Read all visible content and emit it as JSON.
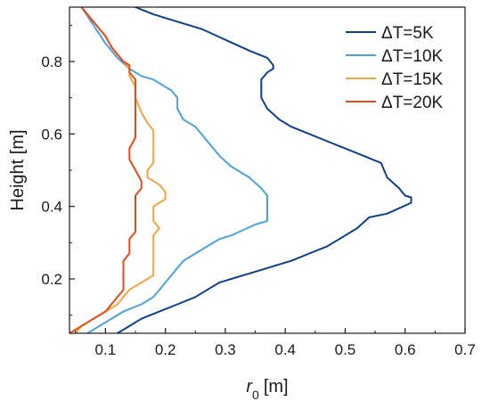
{
  "chart_data": {
    "type": "line",
    "title": "",
    "xlabel": "r",
    "xlabel_sub": "0",
    "xlabel_unit": "[m]",
    "ylabel": "Height [m]",
    "xlim": [
      0.04,
      0.7
    ],
    "ylim": [
      0.05,
      0.95
    ],
    "xticks": [
      0.1,
      0.2,
      0.3,
      0.4,
      0.5,
      0.6,
      0.7
    ],
    "xtick_labels": [
      "0.1",
      "0.2",
      "0.3",
      "0.4",
      "0.5",
      "0.6",
      "0.7"
    ],
    "yticks": [
      0.2,
      0.4,
      0.6,
      0.8
    ],
    "ytick_labels": [
      "0.2",
      "0.4",
      "0.6",
      "0.8"
    ],
    "grid": false,
    "legend_position": "top-right",
    "series": [
      {
        "name": "ΔT=5K",
        "color": "#0d3f8f",
        "points": [
          [
            0.12,
            0.05
          ],
          [
            0.14,
            0.07
          ],
          [
            0.16,
            0.09
          ],
          [
            0.19,
            0.11
          ],
          [
            0.22,
            0.13
          ],
          [
            0.25,
            0.15
          ],
          [
            0.27,
            0.17
          ],
          [
            0.29,
            0.19
          ],
          [
            0.31,
            0.2
          ],
          [
            0.33,
            0.21
          ],
          [
            0.35,
            0.22
          ],
          [
            0.37,
            0.23
          ],
          [
            0.39,
            0.24
          ],
          [
            0.41,
            0.25
          ],
          [
            0.44,
            0.27
          ],
          [
            0.47,
            0.29
          ],
          [
            0.49,
            0.31
          ],
          [
            0.51,
            0.33
          ],
          [
            0.52,
            0.34
          ],
          [
            0.53,
            0.355
          ],
          [
            0.54,
            0.37
          ],
          [
            0.57,
            0.38
          ],
          [
            0.59,
            0.395
          ],
          [
            0.61,
            0.41
          ],
          [
            0.61,
            0.425
          ],
          [
            0.6,
            0.43
          ],
          [
            0.59,
            0.45
          ],
          [
            0.57,
            0.48
          ],
          [
            0.56,
            0.52
          ],
          [
            0.53,
            0.54
          ],
          [
            0.5,
            0.56
          ],
          [
            0.47,
            0.58
          ],
          [
            0.44,
            0.6
          ],
          [
            0.41,
            0.62
          ],
          [
            0.39,
            0.64
          ],
          [
            0.37,
            0.67
          ],
          [
            0.36,
            0.7
          ],
          [
            0.36,
            0.73
          ],
          [
            0.36,
            0.75
          ],
          [
            0.37,
            0.77
          ],
          [
            0.38,
            0.78
          ],
          [
            0.38,
            0.79
          ],
          [
            0.37,
            0.81
          ],
          [
            0.34,
            0.83
          ],
          [
            0.3,
            0.86
          ],
          [
            0.26,
            0.89
          ],
          [
            0.22,
            0.91
          ],
          [
            0.18,
            0.93
          ],
          [
            0.15,
            0.95
          ]
        ]
      },
      {
        "name": "ΔT=10K",
        "color": "#4aa3df",
        "points": [
          [
            0.07,
            0.05
          ],
          [
            0.09,
            0.07
          ],
          [
            0.11,
            0.09
          ],
          [
            0.13,
            0.11
          ],
          [
            0.16,
            0.13
          ],
          [
            0.18,
            0.15
          ],
          [
            0.19,
            0.17
          ],
          [
            0.2,
            0.19
          ],
          [
            0.21,
            0.21
          ],
          [
            0.22,
            0.23
          ],
          [
            0.23,
            0.25
          ],
          [
            0.25,
            0.27
          ],
          [
            0.27,
            0.29
          ],
          [
            0.29,
            0.31
          ],
          [
            0.31,
            0.32
          ],
          [
            0.33,
            0.335
          ],
          [
            0.35,
            0.35
          ],
          [
            0.37,
            0.36
          ],
          [
            0.37,
            0.38
          ],
          [
            0.37,
            0.4
          ],
          [
            0.37,
            0.43
          ],
          [
            0.36,
            0.45
          ],
          [
            0.34,
            0.48
          ],
          [
            0.31,
            0.51
          ],
          [
            0.29,
            0.54
          ],
          [
            0.28,
            0.56
          ],
          [
            0.27,
            0.58
          ],
          [
            0.26,
            0.6
          ],
          [
            0.25,
            0.62
          ],
          [
            0.23,
            0.64
          ],
          [
            0.22,
            0.67
          ],
          [
            0.22,
            0.7
          ],
          [
            0.21,
            0.72
          ],
          [
            0.2,
            0.73
          ],
          [
            0.18,
            0.75
          ],
          [
            0.16,
            0.76
          ],
          [
            0.14,
            0.78
          ],
          [
            0.12,
            0.81
          ],
          [
            0.1,
            0.85
          ],
          [
            0.08,
            0.9
          ],
          [
            0.06,
            0.95
          ]
        ]
      },
      {
        "name": "ΔT=15K",
        "color": "#f5a442",
        "points": [
          [
            0.05,
            0.05
          ],
          [
            0.06,
            0.07
          ],
          [
            0.08,
            0.09
          ],
          [
            0.1,
            0.11
          ],
          [
            0.12,
            0.13
          ],
          [
            0.13,
            0.15
          ],
          [
            0.14,
            0.17
          ],
          [
            0.16,
            0.19
          ],
          [
            0.17,
            0.2
          ],
          [
            0.18,
            0.21
          ],
          [
            0.18,
            0.23
          ],
          [
            0.18,
            0.26
          ],
          [
            0.18,
            0.29
          ],
          [
            0.18,
            0.32
          ],
          [
            0.19,
            0.34
          ],
          [
            0.18,
            0.36
          ],
          [
            0.18,
            0.38
          ],
          [
            0.18,
            0.4
          ],
          [
            0.2,
            0.42
          ],
          [
            0.2,
            0.44
          ],
          [
            0.19,
            0.46
          ],
          [
            0.17,
            0.48
          ],
          [
            0.17,
            0.5
          ],
          [
            0.18,
            0.52
          ],
          [
            0.18,
            0.55
          ],
          [
            0.18,
            0.58
          ],
          [
            0.18,
            0.61
          ],
          [
            0.17,
            0.63
          ],
          [
            0.16,
            0.66
          ],
          [
            0.15,
            0.7
          ],
          [
            0.15,
            0.73
          ],
          [
            0.14,
            0.76
          ],
          [
            0.14,
            0.78
          ],
          [
            0.13,
            0.8
          ],
          [
            0.12,
            0.82
          ],
          [
            0.11,
            0.84
          ],
          [
            0.1,
            0.87
          ],
          [
            0.08,
            0.91
          ],
          [
            0.06,
            0.95
          ]
        ]
      },
      {
        "name": "ΔT=20K",
        "color": "#e84a1a",
        "points": [
          [
            0.04,
            0.05
          ],
          [
            0.06,
            0.07
          ],
          [
            0.08,
            0.09
          ],
          [
            0.1,
            0.11
          ],
          [
            0.11,
            0.13
          ],
          [
            0.12,
            0.15
          ],
          [
            0.13,
            0.17
          ],
          [
            0.13,
            0.19
          ],
          [
            0.13,
            0.21
          ],
          [
            0.13,
            0.23
          ],
          [
            0.13,
            0.25
          ],
          [
            0.14,
            0.27
          ],
          [
            0.14,
            0.29
          ],
          [
            0.14,
            0.31
          ],
          [
            0.15,
            0.33
          ],
          [
            0.15,
            0.35
          ],
          [
            0.15,
            0.37
          ],
          [
            0.15,
            0.4
          ],
          [
            0.15,
            0.43
          ],
          [
            0.16,
            0.45
          ],
          [
            0.16,
            0.47
          ],
          [
            0.15,
            0.5
          ],
          [
            0.14,
            0.53
          ],
          [
            0.14,
            0.56
          ],
          [
            0.15,
            0.59
          ],
          [
            0.15,
            0.62
          ],
          [
            0.15,
            0.65
          ],
          [
            0.15,
            0.68
          ],
          [
            0.15,
            0.71
          ],
          [
            0.15,
            0.73
          ],
          [
            0.15,
            0.75
          ],
          [
            0.14,
            0.77
          ],
          [
            0.14,
            0.79
          ],
          [
            0.13,
            0.8
          ],
          [
            0.12,
            0.82
          ],
          [
            0.11,
            0.84
          ],
          [
            0.1,
            0.87
          ],
          [
            0.08,
            0.91
          ],
          [
            0.06,
            0.95
          ]
        ]
      }
    ]
  }
}
